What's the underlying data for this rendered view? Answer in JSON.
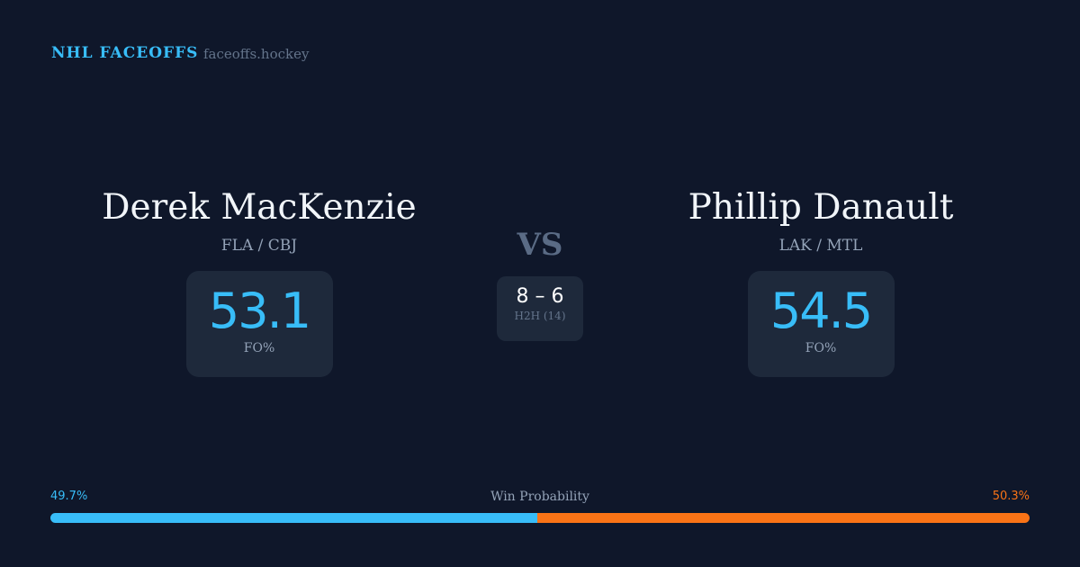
{
  "header": {
    "brand": "NHL FACEOFFS",
    "site": "faceoffs.hockey"
  },
  "left": {
    "name": "Derek MacKenzie",
    "teams": "FLA / CBJ",
    "fo_pct": "53.1",
    "fo_label": "FO%"
  },
  "right": {
    "name": "Phillip Danault",
    "teams": "LAK / MTL",
    "fo_pct": "54.5",
    "fo_label": "FO%"
  },
  "versus": {
    "label": "VS",
    "h2h_score": "8 – 6",
    "h2h_label": "H2H (14)"
  },
  "win_probability": {
    "label": "Win Probability",
    "left_pct": "49.7%",
    "right_pct": "50.3%",
    "left_value": 49.7,
    "right_value": 50.3,
    "left_color": "#38bdf8",
    "right_color": "#f97316"
  }
}
